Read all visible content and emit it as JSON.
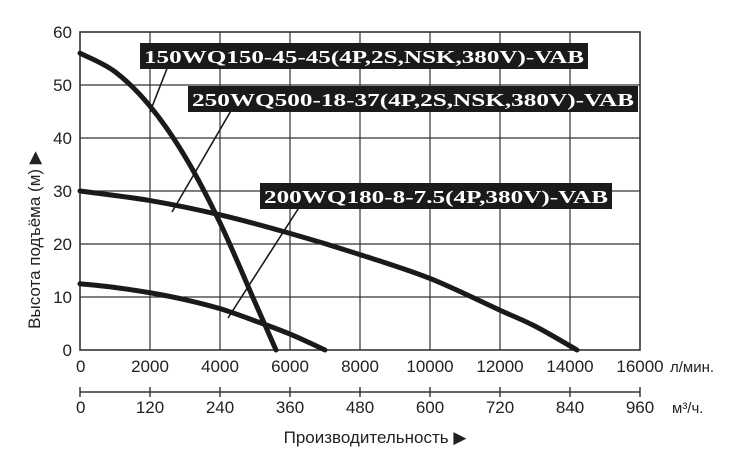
{
  "chart_data": {
    "type": "line",
    "ylabel": "Высота подъёма (м) ▶",
    "xlabel": "Производительность ▶",
    "x_unit_top": "л/мин.",
    "x_unit_bottom": "м³/ч.",
    "xlim": [
      0,
      16000
    ],
    "ylim": [
      0,
      60
    ],
    "x_ticks": [
      0,
      2000,
      4000,
      6000,
      8000,
      10000,
      12000,
      14000,
      16000
    ],
    "x_ticks_m3h": [
      0,
      120,
      240,
      360,
      480,
      600,
      720,
      840,
      960
    ],
    "y_ticks": [
      0,
      10,
      20,
      30,
      40,
      50,
      60
    ],
    "grid": true,
    "series": [
      {
        "name": "150WQ150-45-45(4P,2S,NSK,380V)-VAB",
        "x": [
          0,
          1000,
          2000,
          3000,
          4000,
          5000,
          5600
        ],
        "y": [
          56,
          52.5,
          46,
          36.5,
          24,
          9,
          0
        ]
      },
      {
        "name": "250WQ500-18-37(4P,2S,NSK,380V)-VAB",
        "x": [
          0,
          2000,
          4000,
          6000,
          8000,
          10000,
          12000,
          13000,
          14200
        ],
        "y": [
          30,
          28.2,
          25.5,
          22,
          18,
          13.5,
          7.5,
          4.5,
          0
        ]
      },
      {
        "name": "200WQ180-8-7.5(4P,380V)-VAB",
        "x": [
          0,
          1000,
          2000,
          3000,
          4000,
          5000,
          6000,
          7000
        ],
        "y": [
          12.5,
          11.8,
          10.8,
          9.5,
          7.8,
          5.5,
          3,
          0
        ]
      }
    ],
    "colors": {
      "curve": "#1a1a1a",
      "grid": "#333333",
      "label_bg": "#1a1a1a",
      "label_text": "#ffffff"
    }
  }
}
